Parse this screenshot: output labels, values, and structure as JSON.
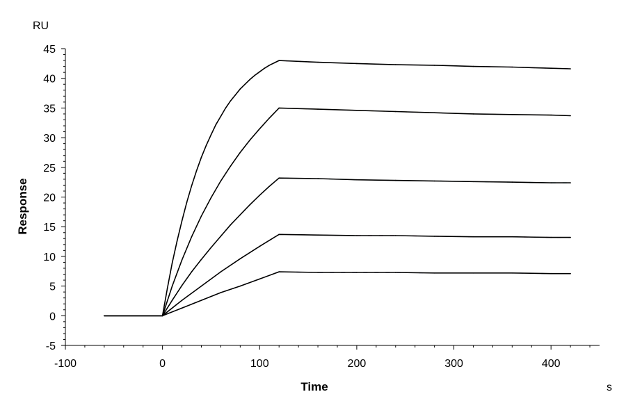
{
  "chart_data": {
    "type": "line",
    "xlabel": "Time",
    "ylabel": "Response",
    "x_unit": "s",
    "y_unit": "RU",
    "xlim": [
      -100,
      450
    ],
    "ylim": [
      -5,
      45
    ],
    "x_ticks": [
      -100,
      0,
      100,
      200,
      300,
      400
    ],
    "y_ticks": [
      -5,
      0,
      5,
      10,
      15,
      20,
      25,
      30,
      35,
      40,
      45
    ],
    "x_minor_step": 20,
    "y_minor_step": 1,
    "grid": false,
    "legend": "none",
    "fit_color": "#000000",
    "raw_colors": [
      "#8b2a8b",
      "#c9a227",
      "#2a8b8b",
      "#8b2a6b",
      "#2a2a8b"
    ],
    "series": [
      {
        "x": [
          -60,
          0,
          5,
          10,
          15,
          20,
          25,
          30,
          35,
          40,
          45,
          50,
          55,
          60,
          65,
          70,
          75,
          80,
          85,
          90,
          95,
          100,
          105,
          110,
          115,
          120,
          160,
          200,
          240,
          280,
          320,
          360,
          400,
          420
        ],
        "values": [
          0,
          0,
          4.6,
          8.9,
          12.6,
          16.0,
          19.1,
          21.9,
          24.4,
          26.7,
          28.7,
          30.5,
          32.2,
          33.6,
          35.0,
          36.2,
          37.2,
          38.2,
          39.0,
          39.8,
          40.5,
          41.1,
          41.7,
          42.2,
          42.6,
          43.0,
          42.7,
          42.5,
          42.3,
          42.2,
          42.0,
          41.9,
          41.7,
          41.6
        ]
      },
      {
        "x": [
          -60,
          0,
          10,
          20,
          30,
          40,
          50,
          60,
          70,
          80,
          90,
          100,
          110,
          120,
          160,
          200,
          240,
          280,
          320,
          360,
          400,
          420
        ],
        "values": [
          0,
          0,
          5.0,
          9.4,
          13.3,
          16.8,
          19.9,
          22.7,
          25.2,
          27.5,
          29.6,
          31.5,
          33.3,
          35.0,
          34.8,
          34.6,
          34.4,
          34.2,
          34.0,
          33.9,
          33.8,
          33.7
        ]
      },
      {
        "x": [
          -60,
          0,
          10,
          20,
          30,
          40,
          50,
          60,
          70,
          80,
          90,
          100,
          110,
          120,
          160,
          200,
          240,
          280,
          320,
          360,
          400,
          420
        ],
        "values": [
          0,
          0,
          2.6,
          5.1,
          7.4,
          9.5,
          11.5,
          13.4,
          15.3,
          17.0,
          18.7,
          20.3,
          21.8,
          23.2,
          23.1,
          22.9,
          22.8,
          22.7,
          22.6,
          22.5,
          22.4,
          22.4
        ]
      },
      {
        "x": [
          -60,
          0,
          20,
          40,
          60,
          80,
          100,
          120,
          160,
          200,
          240,
          280,
          320,
          360,
          400,
          420
        ],
        "values": [
          0,
          0,
          2.6,
          5.0,
          7.4,
          9.6,
          11.7,
          13.7,
          13.6,
          13.5,
          13.5,
          13.4,
          13.3,
          13.3,
          13.2,
          13.2
        ]
      },
      {
        "x": [
          -60,
          0,
          20,
          40,
          60,
          80,
          100,
          120,
          160,
          200,
          240,
          280,
          320,
          360,
          400,
          420
        ],
        "values": [
          0,
          0,
          1.3,
          2.6,
          3.9,
          5.0,
          6.2,
          7.4,
          7.3,
          7.3,
          7.3,
          7.2,
          7.2,
          7.2,
          7.1,
          7.1
        ]
      }
    ]
  }
}
